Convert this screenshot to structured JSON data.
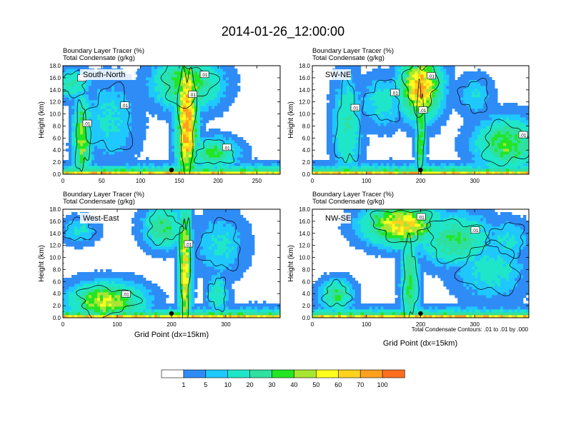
{
  "title": "2014-01-26_12:00:00",
  "colors": {
    "levels": [
      "#ffffff",
      "#2f8cf6",
      "#1fc8ff",
      "#1fe6c8",
      "#2fe0a0",
      "#22e622",
      "#a8e632",
      "#ffff1e",
      "#ffd21e",
      "#ffa01e",
      "#ff6e1e",
      "#ff2020"
    ],
    "contour": "#000000"
  },
  "chart_data": [
    {
      "type": "heatmap",
      "panel": "top-left",
      "label": "South-North",
      "subtitle_lines": [
        "Boundary Layer Tracer   (%)",
        "Total Condensate   (g/kg)"
      ],
      "ylabel": "Height (km)",
      "xlabel": "",
      "xlim": [
        0,
        280
      ],
      "ylim": [
        0,
        18
      ],
      "xticks": [
        0,
        50,
        100,
        150,
        200,
        250
      ],
      "yticks": [
        0.0,
        2.0,
        4.0,
        6.0,
        8.0,
        10.0,
        12.0,
        14.0,
        16.0,
        18.0
      ],
      "contour_labels": [
        ".01",
        ".01",
        ".01",
        ".01",
        ".01",
        ".01"
      ],
      "marker_x": 140,
      "blobs": [
        {
          "x": 160,
          "z": 9,
          "sx": 8,
          "sz": 7,
          "v": 78
        },
        {
          "x": 160,
          "z": 15,
          "sx": 25,
          "sz": 2.5,
          "v": 40
        },
        {
          "x": 25,
          "z": 6,
          "sx": 7,
          "sz": 4,
          "v": 45
        },
        {
          "x": 195,
          "z": 3.5,
          "sx": 18,
          "sz": 1.5,
          "v": 32
        },
        {
          "x": 60,
          "z": 9,
          "sx": 22,
          "sz": 4,
          "v": 12
        },
        {
          "x": 12,
          "z": 15,
          "sx": 14,
          "sz": 1.5,
          "v": 20
        }
      ]
    },
    {
      "type": "heatmap",
      "panel": "top-right",
      "label": "SW-NE",
      "subtitle_lines": [
        "Boundary Layer Tracer   (%)",
        "Total Condensate   (g/kg)"
      ],
      "ylabel": "Height (km)",
      "xlabel": "",
      "xlim": [
        0,
        400
      ],
      "ylim": [
        0,
        18
      ],
      "xticks": [
        0,
        100,
        200,
        300
      ],
      "yticks": [
        0.0,
        2.0,
        4.0,
        6.0,
        8.0,
        10.0,
        12.0,
        14.0,
        16.0,
        18.0
      ],
      "contour_labels": [
        ".01",
        ".01",
        ".01",
        ".01",
        ".01"
      ],
      "marker_x": 200,
      "blobs": [
        {
          "x": 200,
          "z": 14.5,
          "sx": 22,
          "sz": 3,
          "v": 72
        },
        {
          "x": 200,
          "z": 7,
          "sx": 5,
          "sz": 6,
          "v": 40
        },
        {
          "x": 360,
          "z": 5,
          "sx": 35,
          "sz": 2.5,
          "v": 38
        },
        {
          "x": 65,
          "z": 8,
          "sx": 16,
          "sz": 5,
          "v": 20
        },
        {
          "x": 130,
          "z": 12,
          "sx": 25,
          "sz": 2.5,
          "v": 14
        },
        {
          "x": 300,
          "z": 13,
          "sx": 20,
          "sz": 2,
          "v": 10
        }
      ]
    },
    {
      "type": "heatmap",
      "panel": "bottom-left",
      "label": "West-East",
      "subtitle_lines": [
        "Boundary Layer Tracer   (%)",
        "Total Condensate   (g/kg)"
      ],
      "ylabel": "Height (km)",
      "xlabel": "Grid Point (dx=15km)",
      "xlim": [
        0,
        400
      ],
      "ylim": [
        0,
        18
      ],
      "xticks": [
        0,
        100,
        200,
        300
      ],
      "yticks": [
        0.0,
        2.0,
        4.0,
        6.0,
        8.0,
        10.0,
        12.0,
        14.0,
        16.0,
        18.0
      ],
      "contour_labels": [
        ".01",
        ".01"
      ],
      "marker_x": 200,
      "blobs": [
        {
          "x": 225,
          "z": 8,
          "sx": 7,
          "sz": 7,
          "v": 62
        },
        {
          "x": 80,
          "z": 2.8,
          "sx": 40,
          "sz": 1.8,
          "v": 50
        },
        {
          "x": 185,
          "z": 15,
          "sx": 22,
          "sz": 2,
          "v": 30
        },
        {
          "x": 30,
          "z": 14.5,
          "sx": 20,
          "sz": 1.3,
          "v": 12
        },
        {
          "x": 290,
          "z": 12,
          "sx": 28,
          "sz": 3,
          "v": 12
        },
        {
          "x": 285,
          "z": 4,
          "sx": 12,
          "sz": 2,
          "v": 18
        }
      ]
    },
    {
      "type": "heatmap",
      "panel": "bottom-right",
      "label": "NW-SE",
      "subtitle_lines": [
        "Boundary Layer Tracer   (%)",
        "Total Condensate   (g/kg)"
      ],
      "ylabel": "Height (km)",
      "xlabel": "Grid Point (dx=15km)",
      "xlim": [
        0,
        400
      ],
      "ylim": [
        0,
        18
      ],
      "xticks": [
        0,
        100,
        200,
        300
      ],
      "yticks": [
        0.0,
        2.0,
        4.0,
        6.0,
        8.0,
        10.0,
        12.0,
        14.0,
        16.0,
        18.0
      ],
      "contour_labels": [
        ".01",
        ".01"
      ],
      "marker_x": 200,
      "footnote": "Total Condensate Contours: .01 to .01 by .000",
      "blobs": [
        {
          "x": 165,
          "z": 15.5,
          "sx": 40,
          "sz": 2,
          "v": 62
        },
        {
          "x": 265,
          "z": 13,
          "sx": 40,
          "sz": 2.5,
          "v": 30
        },
        {
          "x": 180,
          "z": 6,
          "sx": 10,
          "sz": 5,
          "v": 30
        },
        {
          "x": 45,
          "z": 3.8,
          "sx": 18,
          "sz": 1.5,
          "v": 30
        },
        {
          "x": 330,
          "z": 8,
          "sx": 40,
          "sz": 3,
          "v": 14
        },
        {
          "x": 360,
          "z": 13,
          "sx": 25,
          "sz": 2,
          "v": 12
        }
      ]
    }
  ],
  "colorbar": {
    "labels": [
      "1",
      "5",
      "10",
      "20",
      "30",
      "40",
      "50",
      "60",
      "70",
      "100"
    ]
  }
}
